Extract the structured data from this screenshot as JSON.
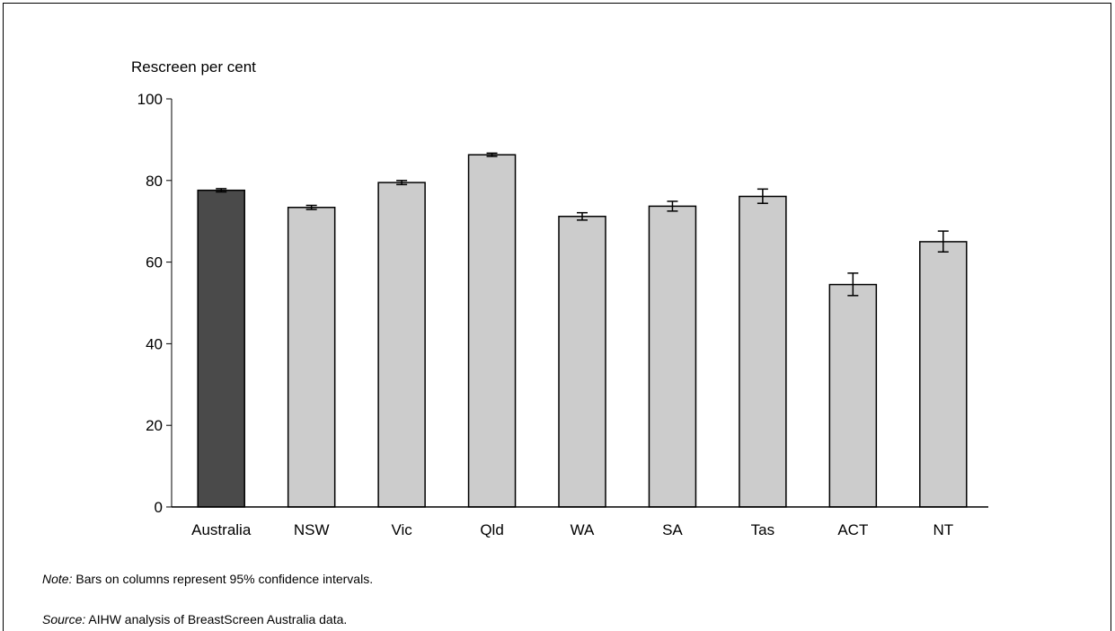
{
  "chart_data": {
    "type": "bar",
    "ylabel": "Rescreen per cent",
    "ylim": [
      0,
      100
    ],
    "yticks": [
      0,
      20,
      40,
      60,
      80,
      100
    ],
    "categories": [
      "Australia",
      "NSW",
      "Vic",
      "Qld",
      "WA",
      "SA",
      "Tas",
      "ACT",
      "NT"
    ],
    "values": [
      77.6,
      73.4,
      79.5,
      86.3,
      71.2,
      73.7,
      76.1,
      54.5,
      65.0
    ],
    "ci_lower": [
      77.2,
      72.9,
      79.0,
      85.9,
      70.3,
      72.5,
      74.4,
      51.8,
      62.5
    ],
    "ci_upper": [
      78.0,
      73.9,
      80.0,
      86.7,
      72.1,
      74.9,
      77.9,
      57.3,
      67.6
    ],
    "colors": {
      "highlight": "#4a4a4a",
      "default": "#cccccc",
      "outline": "#000000"
    },
    "highlight_index": 0,
    "grid": false,
    "legend": "none"
  },
  "footnotes": {
    "note_label": "Note:",
    "note_text": " Bars on columns represent 95% confidence intervals.",
    "source_label": "Source:",
    "source_text": " AIHW analysis of BreastScreen Australia data."
  }
}
